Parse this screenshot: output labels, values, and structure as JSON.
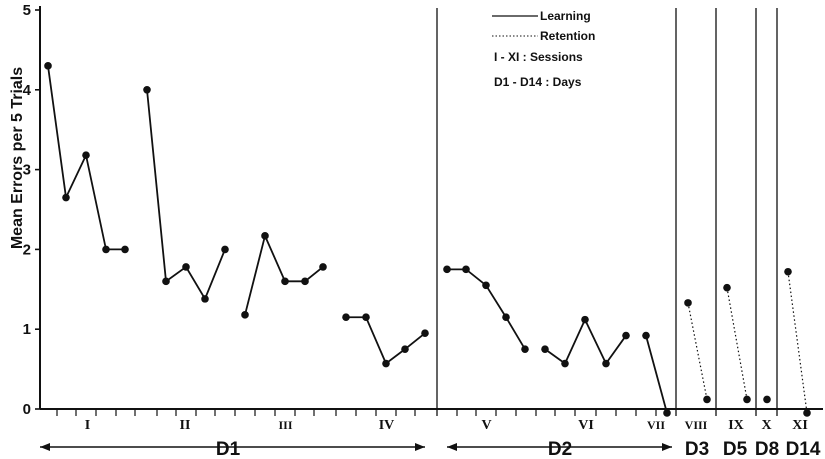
{
  "chart_data": {
    "type": "line",
    "ylabel": "Mean Errors per 5 Trials",
    "ylim": [
      0,
      5
    ],
    "y_ticks": [
      "0",
      "1",
      "2",
      "3",
      "4",
      "5"
    ],
    "legend": {
      "position": "top-right",
      "learning": "Learning",
      "retention": "Retention",
      "sessions": "I - XI : Sessions",
      "days": "D1 - D14 : Days"
    },
    "sessions": [
      {
        "label": "I",
        "kind": "learning",
        "values": [
          4.3,
          2.65,
          3.18,
          2.0,
          2.0
        ]
      },
      {
        "label": "II",
        "kind": "learning",
        "values": [
          4.0,
          1.6,
          1.78,
          1.38,
          2.0
        ]
      },
      {
        "label": "III",
        "kind": "learning",
        "values": [
          1.18,
          2.17,
          1.6,
          1.6,
          1.78
        ]
      },
      {
        "label": "IV",
        "kind": "learning",
        "values": [
          1.15,
          1.15,
          0.57,
          0.75,
          0.95
        ]
      },
      {
        "label": "V",
        "kind": "learning",
        "values": [
          1.75,
          1.75,
          1.55,
          1.15,
          0.75
        ]
      },
      {
        "label": "VI",
        "kind": "learning",
        "values": [
          0.75,
          0.57,
          1.12,
          0.57,
          0.92
        ]
      },
      {
        "label": "VII",
        "kind": "learning",
        "values": [
          0.92,
          -0.05
        ]
      },
      {
        "label": "VIII",
        "kind": "retention",
        "values": [
          1.33,
          0.12
        ]
      },
      {
        "label": "IX",
        "kind": "retention",
        "values": [
          1.52,
          0.12
        ]
      },
      {
        "label": "X",
        "kind": "retention",
        "values": [
          0.12
        ]
      },
      {
        "label": "XI",
        "kind": "retention",
        "values": [
          1.72,
          -0.05
        ]
      }
    ],
    "days": [
      {
        "label": "D1",
        "sessions": [
          "I",
          "II",
          "III",
          "IV"
        ]
      },
      {
        "label": "D2",
        "sessions": [
          "V",
          "VI",
          "VII"
        ]
      },
      {
        "label": "D3",
        "sessions": [
          "VIII"
        ]
      },
      {
        "label": "D5",
        "sessions": [
          "IX"
        ]
      },
      {
        "label": "D8",
        "sessions": [
          "X"
        ]
      },
      {
        "label": "D14",
        "sessions": [
          "XI"
        ]
      }
    ]
  }
}
